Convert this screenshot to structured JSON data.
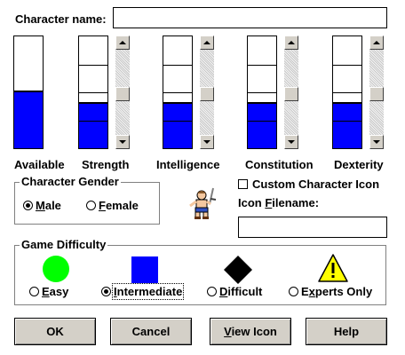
{
  "character": {
    "name_label": "Character name:",
    "name_value": ""
  },
  "stats": [
    {
      "label": "Available",
      "level": 0.5,
      "segments": 1,
      "has_scrollbar": false
    },
    {
      "label": "Strength",
      "level": 0.4,
      "segments": 4,
      "has_scrollbar": true
    },
    {
      "label": "Intelligence",
      "level": 0.4,
      "segments": 4,
      "has_scrollbar": true
    },
    {
      "label": "Constitution",
      "level": 0.4,
      "segments": 4,
      "has_scrollbar": true
    },
    {
      "label": "Dexterity",
      "level": 0.4,
      "segments": 4,
      "has_scrollbar": true
    }
  ],
  "gender": {
    "title": "Character Gender",
    "options": [
      "Male",
      "Female"
    ],
    "selected": "Male"
  },
  "icon": {
    "custom_label": "Custom Character Icon",
    "custom_checked": false,
    "filename_label": "Icon Filename:",
    "filename_value": "",
    "preview_icon": "warrior-character-icon"
  },
  "difficulty": {
    "title": "Game Difficulty",
    "options": [
      {
        "label": "Easy",
        "symbol": "green-circle-icon",
        "color": "#00ff00"
      },
      {
        "label": "Intermediate",
        "symbol": "blue-square-icon",
        "color": "#0000ff"
      },
      {
        "label": "Difficult",
        "symbol": "black-diamond-icon",
        "color": "#000000"
      },
      {
        "label": "Experts Only",
        "symbol": "yellow-warning-icon",
        "color": "#ffff00"
      }
    ],
    "selected": "Intermediate"
  },
  "buttons": {
    "ok": "OK",
    "cancel": "Cancel",
    "view_icon": "View Icon",
    "help": "Help"
  },
  "colors": {
    "gauge_fill": "#0000ff",
    "face": "#d4d0c8"
  }
}
